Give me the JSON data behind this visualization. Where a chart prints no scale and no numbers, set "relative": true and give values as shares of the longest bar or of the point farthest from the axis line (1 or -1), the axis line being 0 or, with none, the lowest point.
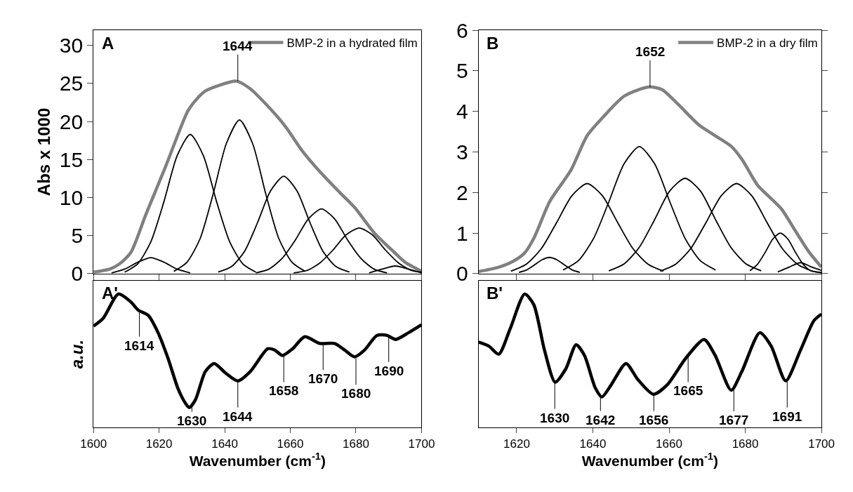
{
  "chart_data": [
    {
      "type": "line",
      "ylabel": "Abs x 1000",
      "xlim": [
        1600,
        1700
      ],
      "xticks": [
        1600,
        1620,
        1640,
        1660,
        1680,
        1700
      ],
      "ylim": [
        0,
        32
      ],
      "yticks": [
        0,
        5,
        10,
        15,
        20,
        25,
        30
      ],
      "tick_labels": "y",
      "legend": "top right",
      "annotations": [
        "A",
        {
          "text": "1644",
          "x": 1644,
          "y": 25.3
        }
      ],
      "series": [
        {
          "name": "BMP-2 in a hydrated film",
          "color": "#808080",
          "x": [
            1600,
            1605,
            1608,
            1611.4,
            1615.9,
            1622,
            1628.8,
            1631.8,
            1634.1,
            1638,
            1643.6,
            1647.8,
            1652.3,
            1658.4,
            1663.7,
            1669,
            1675,
            1679.6,
            1685.7,
            1691.7,
            1695,
            1700
          ],
          "values": [
            0.2,
            0.6,
            1.3,
            2.8,
            7.7,
            14.1,
            21.4,
            23.1,
            24.0,
            24.7,
            25.3,
            24.3,
            22.4,
            19.4,
            16.1,
            13.4,
            10.7,
            8.7,
            5.3,
            2.8,
            1.5,
            0.3
          ]
        },
        {
          "color": "#000000",
          "x": [
            1605.5,
            1609.5,
            1613.5,
            1617.5,
            1621.5,
            1625.5,
            1629.5
          ],
          "values": [
            0.1,
            0.6,
            1.5,
            2.1,
            1.5,
            0.6,
            0.1
          ]
        },
        {
          "color": "#000000",
          "x": [
            1609.5,
            1613.5,
            1617.5,
            1621.5,
            1625.5,
            1629.5,
            1633.5,
            1637.5,
            1641.5,
            1645.5,
            1649.5
          ],
          "values": [
            0.2,
            1.3,
            4.2,
            9.5,
            15.5,
            18.3,
            15.5,
            9.5,
            4.2,
            1.3,
            0.2
          ]
        },
        {
          "color": "#000000",
          "x": [
            1624.5,
            1628.5,
            1632.5,
            1636.5,
            1640.5,
            1644.5,
            1648.5,
            1652.5,
            1656.5,
            1660.5,
            1664.5
          ],
          "values": [
            0.3,
            1.5,
            4.6,
            10.5,
            17.1,
            20.2,
            17.1,
            10.5,
            4.6,
            1.5,
            0.3
          ]
        },
        {
          "color": "#000000",
          "x": [
            1638,
            1642,
            1646,
            1650,
            1654,
            1658,
            1662,
            1666,
            1670,
            1674,
            1678
          ],
          "values": [
            0.2,
            0.9,
            2.9,
            6.7,
            10.9,
            12.8,
            10.9,
            6.7,
            2.9,
            0.9,
            0.2
          ]
        },
        {
          "color": "#000000",
          "x": [
            1649.5,
            1653.5,
            1657.5,
            1661.5,
            1665.5,
            1669.5,
            1673.5,
            1677.5,
            1681.5,
            1685.5,
            1689.5
          ],
          "values": [
            0.1,
            0.6,
            2.0,
            4.4,
            7.2,
            8.5,
            7.2,
            4.4,
            2.0,
            0.6,
            0.1
          ]
        },
        {
          "color": "#000000",
          "x": [
            1661,
            1665,
            1669,
            1673,
            1677,
            1681,
            1685,
            1689,
            1693,
            1697,
            1700
          ],
          "values": [
            0.1,
            0.4,
            1.4,
            3.1,
            5.1,
            6.0,
            5.1,
            3.1,
            1.4,
            0.4,
            0.2
          ]
        },
        {
          "color": "#000000",
          "x": [
            1684,
            1688,
            1692,
            1696,
            1700
          ],
          "values": [
            0.1,
            0.6,
            1.0,
            0.6,
            0.1
          ]
        }
      ]
    },
    {
      "type": "line",
      "xlim": [
        1610,
        1700
      ],
      "xticks": [
        1620,
        1640,
        1660,
        1680,
        1700
      ],
      "ylim": [
        0,
        6
      ],
      "yticks": [
        0,
        1,
        2,
        3,
        4,
        5,
        6
      ],
      "tick_labels": "y",
      "legend": "top right",
      "annotations": [
        "B",
        {
          "text": "1652",
          "x": 1655,
          "y": 4.6
        }
      ],
      "series": [
        {
          "name": "BMP-2 in a dry film",
          "color": "#808080",
          "x": [
            1610,
            1615,
            1619,
            1622.1,
            1624.5,
            1628.7,
            1634.3,
            1638.5,
            1642.7,
            1648.3,
            1654.6,
            1658.1,
            1662.3,
            1667.9,
            1672.1,
            1676.3,
            1679.1,
            1683.3,
            1686.1,
            1689.6,
            1693.1,
            1696.6,
            1700
          ],
          "values": [
            0.05,
            0.15,
            0.3,
            0.51,
            0.87,
            1.78,
            2.56,
            3.4,
            3.86,
            4.38,
            4.6,
            4.54,
            4.18,
            3.66,
            3.4,
            3.14,
            2.82,
            2.17,
            1.91,
            1.58,
            1.06,
            0.55,
            0.16
          ]
        },
        {
          "color": "#000000",
          "x": [
            1620.6,
            1622.6,
            1624.6,
            1626.6,
            1628.6,
            1630.6,
            1632.6,
            1634.6,
            1636.6
          ],
          "values": [
            0.03,
            0.09,
            0.21,
            0.34,
            0.4,
            0.34,
            0.21,
            0.09,
            0.03
          ]
        },
        {
          "color": "#000000",
          "x": [
            1618.5,
            1622.5,
            1626.5,
            1630.5,
            1634.5,
            1638.5,
            1642.5,
            1646.5,
            1650.5,
            1654.5,
            1658.5
          ],
          "values": [
            0.06,
            0.23,
            0.62,
            1.26,
            1.92,
            2.22,
            1.92,
            1.26,
            0.62,
            0.23,
            0.06
          ]
        },
        {
          "color": "#000000",
          "x": [
            1632.2,
            1636.2,
            1640.2,
            1644.2,
            1648.2,
            1652.2,
            1656.2,
            1660.2,
            1664.2,
            1668.2,
            1672.2
          ],
          "values": [
            0.09,
            0.32,
            0.87,
            1.77,
            2.71,
            3.13,
            2.71,
            1.77,
            0.87,
            0.32,
            0.09
          ]
        },
        {
          "color": "#000000",
          "x": [
            1644.2,
            1648.2,
            1652.2,
            1656.2,
            1660.2,
            1664.2,
            1668.2,
            1672.2,
            1676.2,
            1680.2,
            1684.2
          ],
          "values": [
            0.07,
            0.24,
            0.65,
            1.33,
            2.04,
            2.35,
            2.04,
            1.33,
            0.65,
            0.24,
            0.07
          ]
        },
        {
          "color": "#000000",
          "x": [
            1657.7,
            1661.7,
            1665.7,
            1669.7,
            1673.7,
            1677.7,
            1681.7,
            1685.7,
            1689.7,
            1693.7,
            1697.7,
            1700
          ],
          "values": [
            0.06,
            0.23,
            0.62,
            1.26,
            1.92,
            2.22,
            1.92,
            1.26,
            0.62,
            0.23,
            0.06,
            0.03
          ]
        },
        {
          "color": "#000000",
          "x": [
            1681.2,
            1683.2,
            1685.2,
            1687.2,
            1689.2,
            1691.2,
            1693.2,
            1695.2,
            1697.2,
            1700
          ],
          "values": [
            0.07,
            0.23,
            0.52,
            0.85,
            1.0,
            0.85,
            0.52,
            0.23,
            0.07,
            0.02
          ]
        },
        {
          "color": "#000000",
          "x": [
            1688.5,
            1691.5,
            1694.5,
            1697.5,
            1700
          ],
          "values": [
            0.04,
            0.16,
            0.27,
            0.16,
            0.08
          ]
        }
      ]
    },
    {
      "type": "line",
      "relative": true,
      "xlabel": "Wavenumber (cm$^{-1}$)",
      "ylabel": "a.u.",
      "xlim": [
        1600,
        1700
      ],
      "xticks": [
        1600,
        1620,
        1640,
        1660,
        1680,
        1700
      ],
      "tick_labels": "x",
      "annotations": [
        "A'",
        {
          "text": "1614",
          "x": 1614,
          "y": 0.88
        },
        {
          "text": "1630",
          "x": 1630,
          "y": 0.15
        },
        {
          "text": "1644",
          "x": 1644,
          "y": 0.35
        },
        {
          "text": "1658",
          "x": 1658,
          "y": 0.54
        },
        {
          "text": "1670",
          "x": 1670,
          "y": 0.63
        },
        {
          "text": "1680",
          "x": 1680,
          "y": 0.52
        },
        {
          "text": "1690",
          "x": 1690,
          "y": 0.69
        }
      ],
      "series": [
        {
          "color": "#000000",
          "x": [
            1600,
            1603,
            1607.6,
            1611.4,
            1613.6,
            1616.7,
            1619.7,
            1622.7,
            1625.8,
            1628.1,
            1629.2,
            1631.1,
            1634.1,
            1636.8,
            1640.2,
            1644,
            1647.8,
            1653.1,
            1655.3,
            1657.6,
            1660.7,
            1664.4,
            1669,
            1673.5,
            1676.6,
            1679.6,
            1682.6,
            1686.4,
            1689.5,
            1692.1,
            1696,
            1700
          ],
          "values": [
            0.76,
            0.82,
            1.0,
            0.94,
            0.88,
            0.84,
            0.71,
            0.52,
            0.29,
            0.18,
            0.15,
            0.21,
            0.42,
            0.48,
            0.41,
            0.35,
            0.42,
            0.59,
            0.58,
            0.54,
            0.59,
            0.68,
            0.63,
            0.63,
            0.58,
            0.53,
            0.58,
            0.69,
            0.69,
            0.66,
            0.71,
            0.77
          ]
        }
      ]
    },
    {
      "type": "line",
      "relative": true,
      "xlabel": "Wavenumber (cm$^{-1}$)",
      "xlim": [
        1610,
        1700
      ],
      "xticks": [
        1620,
        1640,
        1660,
        1680,
        1700
      ],
      "tick_labels": "x",
      "annotations": [
        "B'",
        {
          "text": "1630",
          "x": 1630,
          "y": 0.34
        },
        {
          "text": "1642",
          "x": 1642,
          "y": 0.23
        },
        {
          "text": "1656",
          "x": 1656,
          "y": 0.25
        },
        {
          "text": "1665",
          "x": 1665,
          "y": 0.54
        },
        {
          "text": "1677",
          "x": 1677,
          "y": 0.28
        },
        {
          "text": "1691",
          "x": 1691,
          "y": 0.35
        }
      ],
      "series": [
        {
          "color": "#000000",
          "x": [
            1610,
            1612.7,
            1615.3,
            1618.3,
            1622.1,
            1624.5,
            1627.3,
            1630.1,
            1632.9,
            1635.6,
            1637.8,
            1640.6,
            1642.4,
            1644.8,
            1648.7,
            1651.8,
            1655.9,
            1659.5,
            1664.4,
            1669.2,
            1672.1,
            1676.3,
            1679.1,
            1683.8,
            1686.8,
            1690.6,
            1694.5,
            1698,
            1700
          ],
          "values": [
            0.64,
            0.61,
            0.55,
            0.74,
            1.0,
            0.92,
            0.58,
            0.34,
            0.44,
            0.62,
            0.54,
            0.3,
            0.23,
            0.32,
            0.48,
            0.36,
            0.25,
            0.32,
            0.52,
            0.66,
            0.54,
            0.28,
            0.42,
            0.71,
            0.61,
            0.35,
            0.58,
            0.8,
            0.85
          ]
        }
      ]
    }
  ]
}
